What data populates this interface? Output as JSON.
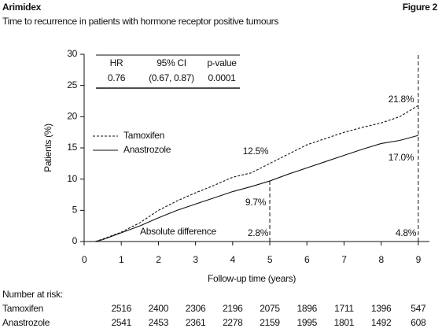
{
  "chart_data": {
    "type": "line",
    "title": "Arimidex",
    "figure_label": "Figure 2",
    "subtitle": "Time to recurrence in patients with hormone receptor positive tumours",
    "x_label": "Follow-up time (years)",
    "y_label": "Patients (%)",
    "xlim": [
      0,
      9.3
    ],
    "ylim": [
      0,
      30
    ],
    "xticks": [
      0,
      1,
      2,
      3,
      4,
      5,
      6,
      7,
      8,
      9
    ],
    "yticks": [
      0,
      5,
      10,
      15,
      20,
      25,
      30
    ],
    "legend": "upper left",
    "x": [
      0.3,
      0.5,
      1,
      1.5,
      2,
      2.5,
      3,
      3.5,
      4,
      4.5,
      5,
      5.5,
      6,
      6.5,
      7,
      7.5,
      8,
      8.5,
      9
    ],
    "series": [
      {
        "name": "Tamoxifen",
        "color": "#111111",
        "dash": true,
        "values": [
          0,
          0.4,
          1.5,
          3,
          5,
          6.5,
          7.8,
          9,
          10.3,
          11,
          12.5,
          14,
          15.5,
          16.5,
          17.5,
          18.3,
          19,
          20,
          21.8
        ]
      },
      {
        "name": "Anastrozole",
        "color": "#111111",
        "dash": false,
        "values": [
          0,
          0.3,
          1.4,
          2.5,
          3.8,
          5,
          6,
          7,
          8,
          8.8,
          9.7,
          10.8,
          11.8,
          12.8,
          13.8,
          14.8,
          15.7,
          16.2,
          17.0
        ]
      }
    ],
    "reference_lines": [
      {
        "x": 5,
        "y": 9.7
      },
      {
        "x": 9,
        "y": 30
      }
    ],
    "annotations": [
      "12.5%",
      "9.7%",
      "2.8%",
      "21.8%",
      "17.0%",
      "4.8%",
      "Absolute difference"
    ],
    "stats_table": {
      "header": [
        "HR",
        "95% CI",
        "p-value"
      ],
      "row": [
        "0.76",
        "(0.67, 0.87)",
        "0.0001"
      ]
    },
    "risk_table": {
      "title": "Number at risk:",
      "rows": [
        {
          "name": "Tamoxifen",
          "values": [
            2516,
            2400,
            2306,
            2196,
            2075,
            1896,
            1711,
            1396,
            547
          ]
        },
        {
          "name": "Anastrozole",
          "values": [
            2541,
            2453,
            2361,
            2278,
            2159,
            1995,
            1801,
            1492,
            608
          ]
        }
      ]
    }
  }
}
